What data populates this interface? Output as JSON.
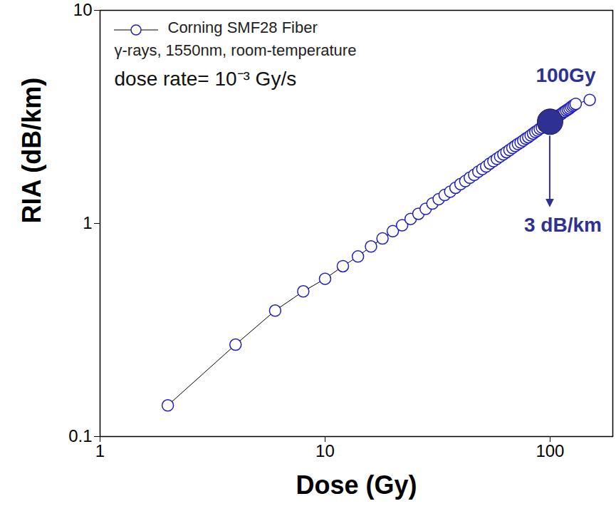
{
  "chart_data": {
    "type": "line",
    "x_label": "Dose (Gy)",
    "y_label": "RIA (dB/km)",
    "log": true,
    "legend": "top-left",
    "xlim": [
      1,
      190
    ],
    "ylim": [
      0.1,
      10
    ],
    "xticks": [
      1,
      10,
      100
    ],
    "yticks": [
      0.1,
      1,
      10
    ],
    "x": [
      2,
      4,
      6,
      8,
      10,
      12,
      14,
      16,
      18,
      20,
      22,
      24,
      26,
      28,
      30,
      32,
      34,
      36,
      38,
      40,
      42,
      44,
      46,
      48,
      50,
      52,
      54,
      56,
      58,
      60,
      62,
      64,
      66,
      68,
      70,
      72,
      74,
      76,
      78,
      80,
      82,
      84,
      86,
      88,
      90,
      92,
      94,
      96,
      98,
      100,
      102,
      104,
      106,
      108,
      110,
      112,
      114,
      116,
      118,
      120,
      122,
      124,
      126,
      128,
      130,
      150
    ],
    "series": [
      {
        "name": "Corning SMF28 Fiber",
        "color": "#1f1fbf",
        "marker": "circle",
        "line_style": "solid",
        "values": [
          0.14,
          0.27,
          0.39,
          0.48,
          0.55,
          0.63,
          0.7,
          0.78,
          0.85,
          0.92,
          0.98,
          1.05,
          1.11,
          1.17,
          1.24,
          1.3,
          1.36,
          1.41,
          1.47,
          1.53,
          1.58,
          1.64,
          1.69,
          1.75,
          1.8,
          1.85,
          1.91,
          1.96,
          2.01,
          2.06,
          2.11,
          2.16,
          2.21,
          2.26,
          2.31,
          2.36,
          2.4,
          2.45,
          2.5,
          2.54,
          2.59,
          2.64,
          2.69,
          2.73,
          2.78,
          2.82,
          2.87,
          2.91,
          2.96,
          3.0,
          3.04,
          3.09,
          3.13,
          3.18,
          3.22,
          3.26,
          3.31,
          3.35,
          3.39,
          3.43,
          3.47,
          3.52,
          3.56,
          3.6,
          3.64,
          3.8
        ]
      }
    ],
    "annotations": [
      {
        "text": "γ-rays, 1550nm, room-temperature"
      },
      {
        "text": "dose rate= 10⁻³ Gy/s"
      },
      {
        "text": "100Gy",
        "x": 100,
        "y": 3,
        "color": "#2e3192"
      },
      {
        "text": "3 dB/km",
        "x": 100,
        "y": 3,
        "color": "#2e3192"
      }
    ]
  }
}
